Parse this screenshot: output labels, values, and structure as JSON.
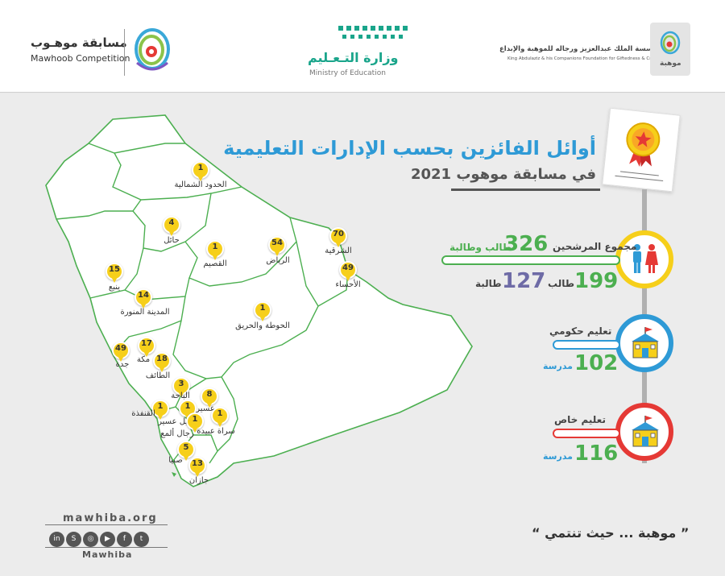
{
  "header": {
    "mawhoob_ar": "مسابقة موهـوب",
    "mawhoob_en": "Mawhoob Competition",
    "ministry_ar": "وزارة التـعـليم",
    "ministry_en": "Ministry of Education",
    "foundation_ar": "مؤسسة الملك عبدالعزيز ورجاله للموهبة والإبداع",
    "foundation_en": "King Abdulaziz & his Companions Foundation for Giftedness & Creativity",
    "mawhiba_logo_text": "موهبة"
  },
  "title": {
    "line1": "أوائل الفائزين بحسب الإدارات التعليمية",
    "line2": "في مسابقة موهوب 2021"
  },
  "stats": {
    "total_label": "مجموع المرشحين",
    "total_value": "326",
    "total_unit": "طالب وطالبة",
    "male_value": "199",
    "male_unit": "طالب",
    "female_value": "127",
    "female_unit": "طالبة",
    "gov_label": "تعليم حكومي",
    "gov_value": "102",
    "gov_unit": "مدرسة",
    "private_label": "تعليم خاص",
    "private_value": "116",
    "private_unit": "مدرسة"
  },
  "regions": [
    {
      "name": "الحدود الشمالية",
      "count": "1"
    },
    {
      "name": "حائل",
      "count": "4"
    },
    {
      "name": "القصيم",
      "count": "1"
    },
    {
      "name": "الرياض",
      "count": "54"
    },
    {
      "name": "الشرقية",
      "count": "70"
    },
    {
      "name": "الأحساء",
      "count": "49"
    },
    {
      "name": "ينبع",
      "count": "15"
    },
    {
      "name": "المدينة المنورة",
      "count": "14"
    },
    {
      "name": "الحوطة والحريق",
      "count": "1"
    },
    {
      "name": "مكة",
      "count": "17"
    },
    {
      "name": "جدة",
      "count": "49"
    },
    {
      "name": "الطائف",
      "count": "18"
    },
    {
      "name": "الباحة",
      "count": "3"
    },
    {
      "name": "عسير",
      "count": "8"
    },
    {
      "name": "القنفذة",
      "count": "1"
    },
    {
      "name": "محايل عسير",
      "count": "1"
    },
    {
      "name": "رجال ألمع",
      "count": "1"
    },
    {
      "name": "سراة عبيدة",
      "count": "1"
    },
    {
      "name": "صبيا",
      "count": "5"
    },
    {
      "name": "جازان",
      "count": "13"
    }
  ],
  "footer": {
    "site": "mawhiba.org",
    "brand": "Mawhiba",
    "slogan": "“ موهبة ... حيث تنتمي ”",
    "social_icons": [
      "linkedin-icon",
      "snapchat-icon",
      "instagram-icon",
      "youtube-icon",
      "facebook-icon",
      "twitter-icon"
    ],
    "social_glyphs": [
      "in",
      "S",
      "◎",
      "▶",
      "f",
      "t"
    ]
  },
  "colors": {
    "green": "#4caf50",
    "blue": "#2e9ad6",
    "yellow": "#f6cf1a",
    "red": "#e53935",
    "purple": "#6e6ba6",
    "map_line": "#4caf50"
  }
}
